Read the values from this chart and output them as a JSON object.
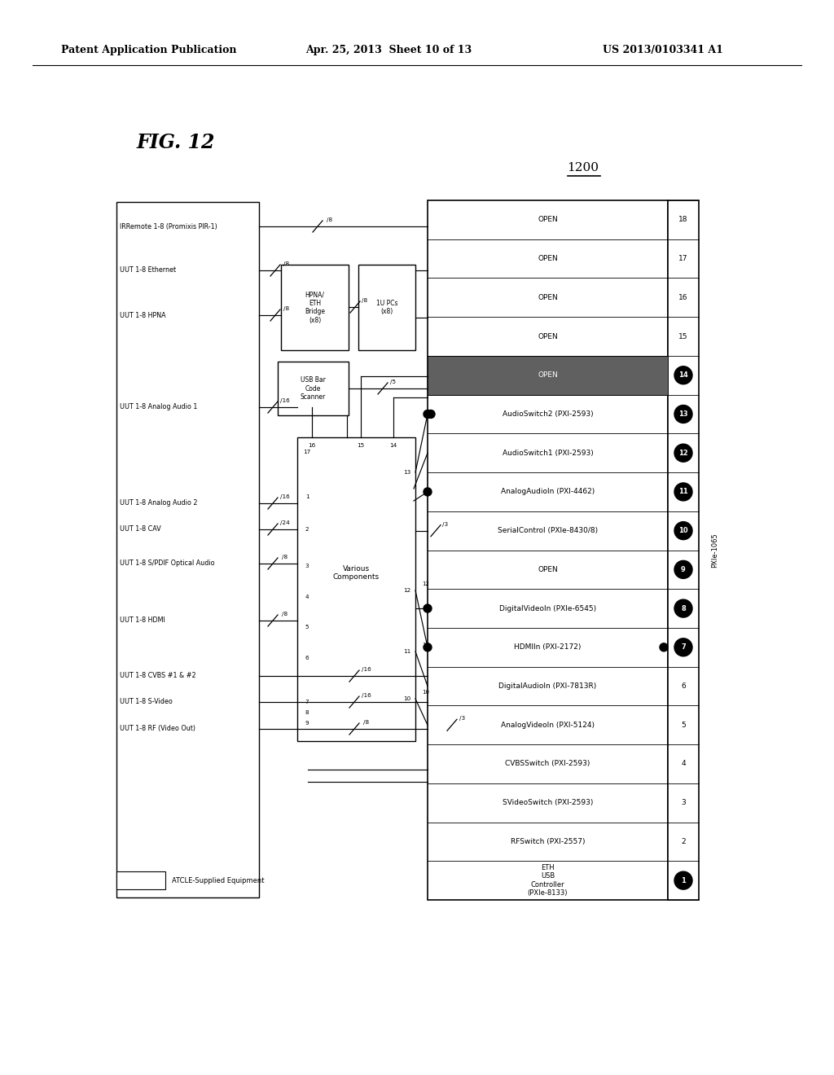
{
  "header_left": "Patent Application Publication",
  "header_mid": "Apr. 25, 2013  Sheet 10 of 13",
  "header_right": "US 2013/0103341 A1",
  "fig_label": "FIG. 12",
  "fig_number": "1200",
  "background": "#ffffff",
  "slots": [
    {
      "num": 18,
      "label": "OPEN",
      "dot": false,
      "dark": false
    },
    {
      "num": 17,
      "label": "OPEN",
      "dot": false,
      "dark": false
    },
    {
      "num": 16,
      "label": "OPEN",
      "dot": false,
      "dark": false
    },
    {
      "num": 15,
      "label": "OPEN",
      "dot": false,
      "dark": false
    },
    {
      "num": 14,
      "label": "OPEN",
      "dot": true,
      "dark": true
    },
    {
      "num": 13,
      "label": "AudioSwitch2 (PXI-2593)",
      "dot": true,
      "dark": false
    },
    {
      "num": 12,
      "label": "AudioSwitch1 (PXI-2593)",
      "dot": true,
      "dark": false
    },
    {
      "num": 11,
      "label": "AnalogAudioIn (PXI-4462)",
      "dot": true,
      "dark": false
    },
    {
      "num": 10,
      "label": "SerialControl (PXIe-8430/8)",
      "dot": true,
      "dark": false
    },
    {
      "num": 9,
      "label": "OPEN",
      "dot": true,
      "dark": false
    },
    {
      "num": 8,
      "label": "DigitalVideoIn (PXIe-6545)",
      "dot": true,
      "dark": false
    },
    {
      "num": 7,
      "label": "HDMIIn (PXI-2172)",
      "dot": true,
      "dark": false
    },
    {
      "num": 6,
      "label": "DigitalAudioIn (PXI-7813R)",
      "dot": false,
      "dark": false
    },
    {
      "num": 5,
      "label": "AnalogVideoIn (PXI-5124)",
      "dot": false,
      "dark": false
    },
    {
      "num": 4,
      "label": "CVBSSwitch (PXI-2593)",
      "dot": false,
      "dark": false
    },
    {
      "num": 3,
      "label": "SVideoSwitch (PXI-2593)",
      "dot": false,
      "dark": false
    },
    {
      "num": 2,
      "label": "RFSwitch (PXI-2557)",
      "dot": false,
      "dark": false
    },
    {
      "num": 1,
      "label": "ETH\nUSB\nController\n(PXIe-8133)",
      "dot": true,
      "dark": false
    }
  ],
  "chassis_label": "PXIe-1065",
  "legend_text": "ATCLE-Supplied Equipment"
}
